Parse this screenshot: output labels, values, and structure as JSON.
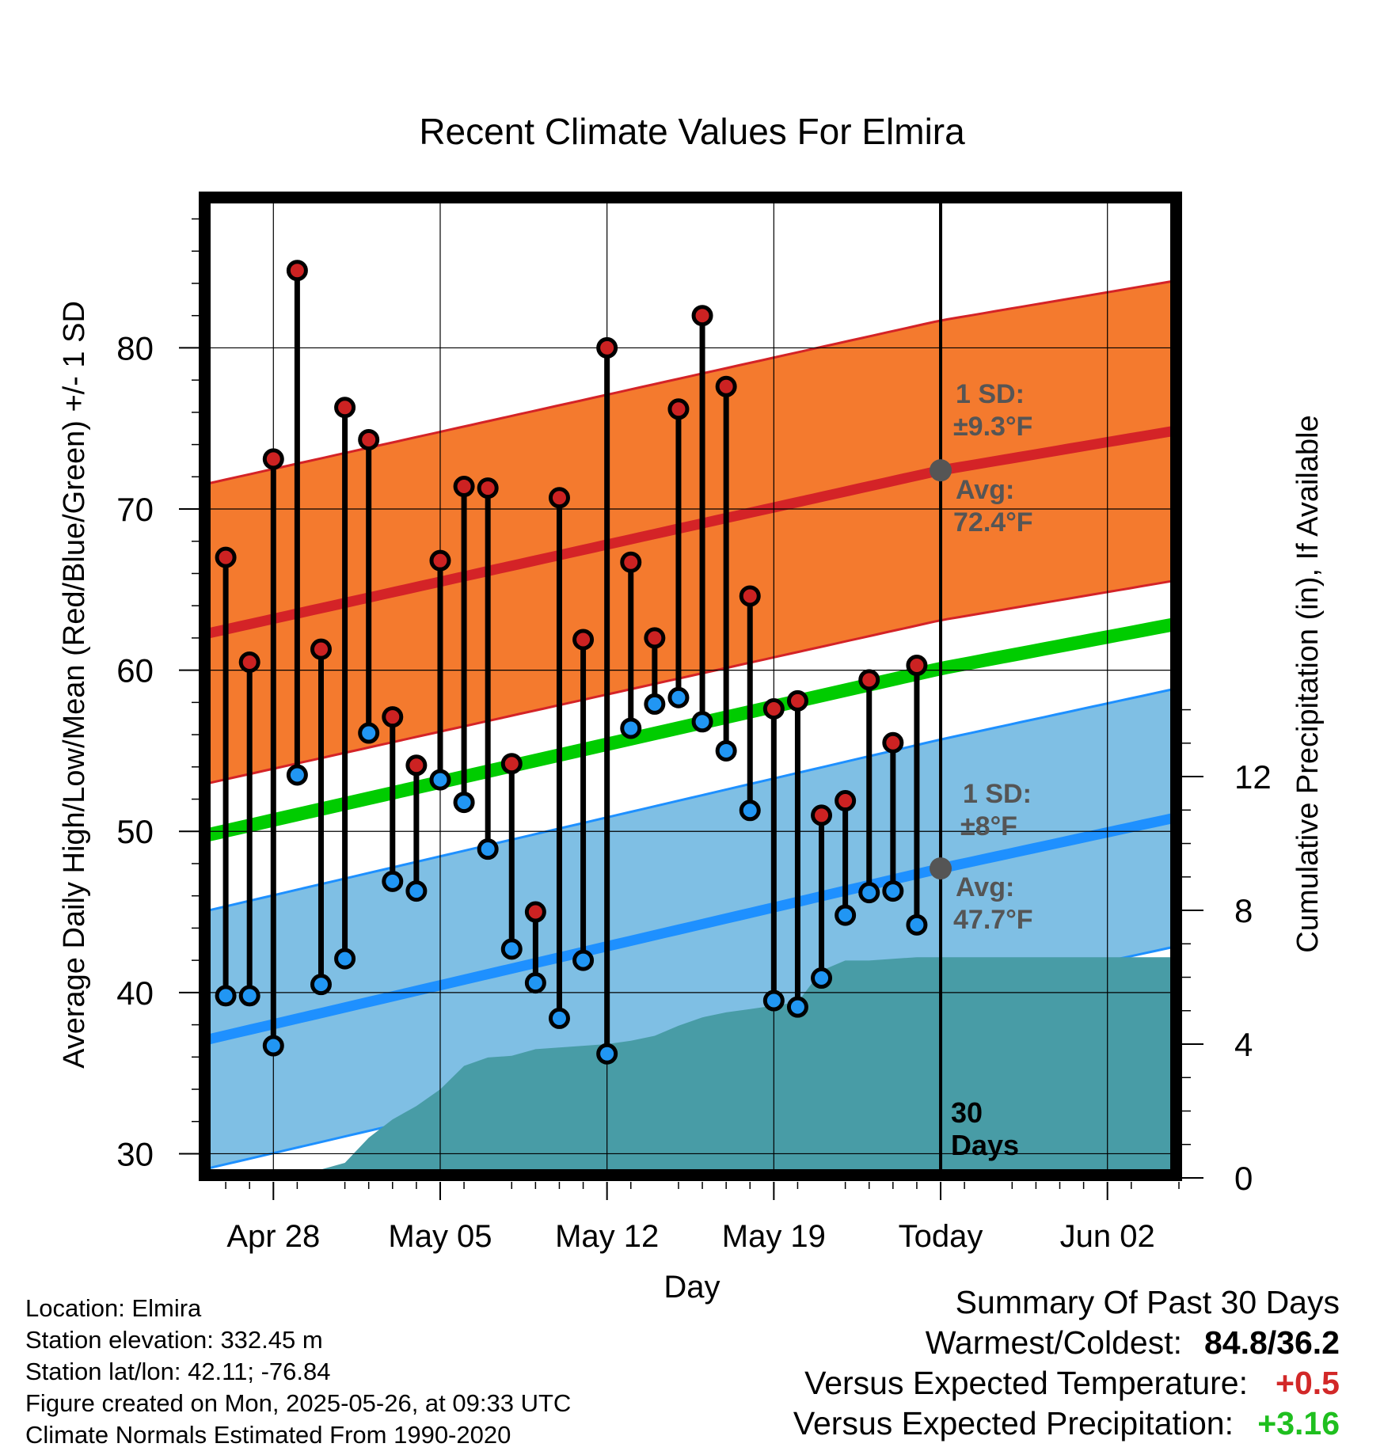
{
  "chart_data": {
    "type": "line",
    "title": "Recent Climate Values For Elmira",
    "xlabel": "Day",
    "ylabel": "Average Daily High/Low/Mean (Red/Blue/Green) +/- 1 SD",
    "y2label": "Cumulative Precipitation (in), If Available",
    "x_range": [
      "2025-04-25",
      "2025-06-05"
    ],
    "ylim": [
      28.5,
      89.5
    ],
    "y2lim": [
      0,
      29.4
    ],
    "y_ticks": [
      30,
      40,
      50,
      60,
      70,
      80
    ],
    "y2_ticks": [
      0,
      4,
      8,
      12
    ],
    "x_ticks": [
      {
        "date": "2025-04-28",
        "label": "Apr 28"
      },
      {
        "date": "2025-05-05",
        "label": "May 05"
      },
      {
        "date": "2025-05-12",
        "label": "May 12"
      },
      {
        "date": "2025-05-19",
        "label": "May 19"
      },
      {
        "date": "2025-05-26",
        "label": "Today"
      },
      {
        "date": "2025-06-02",
        "label": "Jun 02"
      }
    ],
    "grid": true,
    "today": "2025-05-26",
    "today_label": "30 Days",
    "normals": {
      "dates": [
        "2025-04-25",
        "2025-05-26",
        "2025-06-05"
      ],
      "high_avg": [
        62.2,
        72.4,
        74.9
      ],
      "high_sd": 9.3,
      "low_avg": [
        37.0,
        47.7,
        50.9
      ],
      "low_sd": 8,
      "mean_avg": [
        49.7,
        60.1,
        62.9
      ],
      "high_label_sd": "1 SD:",
      "high_label_sd_value": "±9.3°F",
      "high_label_avg": "Avg:",
      "high_label_avg_value": "72.4°F",
      "low_label_sd": "1 SD:",
      "low_label_sd_value": "±8°F",
      "low_label_avg": "Avg:",
      "low_label_avg_value": "47.7°F"
    },
    "observed": {
      "dates": [
        "2025-04-26",
        "2025-04-27",
        "2025-04-28",
        "2025-04-29",
        "2025-04-30",
        "2025-05-01",
        "2025-05-02",
        "2025-05-03",
        "2025-05-04",
        "2025-05-05",
        "2025-05-06",
        "2025-05-07",
        "2025-05-08",
        "2025-05-09",
        "2025-05-10",
        "2025-05-11",
        "2025-05-12",
        "2025-05-13",
        "2025-05-14",
        "2025-05-15",
        "2025-05-16",
        "2025-05-17",
        "2025-05-18",
        "2025-05-19",
        "2025-05-20",
        "2025-05-21",
        "2025-05-22",
        "2025-05-23",
        "2025-05-24",
        "2025-05-25"
      ],
      "high": [
        67.0,
        60.5,
        73.1,
        84.8,
        61.3,
        76.3,
        74.3,
        57.1,
        54.1,
        66.8,
        71.4,
        71.3,
        54.2,
        45.0,
        70.7,
        61.9,
        80.0,
        66.7,
        62.0,
        76.2,
        82.0,
        77.6,
        64.6,
        57.6,
        58.1,
        51.0,
        51.9,
        59.4,
        55.5,
        60.3
      ],
      "low": [
        39.8,
        39.8,
        36.7,
        53.5,
        40.5,
        42.1,
        56.1,
        46.9,
        46.3,
        53.2,
        51.8,
        48.9,
        42.7,
        40.6,
        38.4,
        42.0,
        36.2,
        56.4,
        57.9,
        58.3,
        56.8,
        55.0,
        51.3,
        39.5,
        39.1,
        40.9,
        44.8,
        46.2,
        46.3,
        44.2
      ]
    },
    "precip": {
      "dates": [
        "2025-04-25",
        "2025-04-26",
        "2025-04-27",
        "2025-04-28",
        "2025-04-29",
        "2025-04-30",
        "2025-05-01",
        "2025-05-02",
        "2025-05-03",
        "2025-05-04",
        "2025-05-05",
        "2025-05-06",
        "2025-05-07",
        "2025-05-08",
        "2025-05-09",
        "2025-05-10",
        "2025-05-11",
        "2025-05-12",
        "2025-05-13",
        "2025-05-14",
        "2025-05-15",
        "2025-05-16",
        "2025-05-17",
        "2025-05-18",
        "2025-05-19",
        "2025-05-20",
        "2025-05-21",
        "2025-05-22",
        "2025-05-23",
        "2025-05-24",
        "2025-05-25",
        "2025-05-26",
        "2025-06-05"
      ],
      "values": [
        0.0,
        0.0,
        0.0,
        0.0,
        0.25,
        0.25,
        0.45,
        1.2,
        1.75,
        2.15,
        2.65,
        3.35,
        3.6,
        3.65,
        3.85,
        3.9,
        3.95,
        4.0,
        4.1,
        4.25,
        4.55,
        4.8,
        4.95,
        5.05,
        5.15,
        5.25,
        6.2,
        6.5,
        6.5,
        6.55,
        6.6,
        6.6,
        6.6
      ]
    },
    "colors": {
      "high_band": "#f47a2e",
      "high_line": "#d42327",
      "low_band": "#7fbfe4",
      "low_line": "#1e90ff",
      "mean_line": "#00cc00",
      "precip_fill": "#489ca6",
      "high_marker": "#cc2222",
      "low_marker": "#2196f3",
      "label_gray": "#555555"
    }
  },
  "footer": {
    "location": "Location: Elmira",
    "elevation": "Station elevation: 332.45 m",
    "latlon": "Station lat/lon: 42.11; -76.84",
    "created": "Figure created on Mon, 2025-05-26, at 09:33 UTC",
    "normals": "Climate Normals Estimated From 1990-2020"
  },
  "summary": {
    "title": "Summary Of Past 30 Days",
    "warm_cold_label": "Warmest/Coldest:",
    "warm_cold_value": "84.8/36.2",
    "temp_label": "Versus Expected Temperature:",
    "temp_value": "+0.5",
    "precip_label": "Versus Expected Precipitation:",
    "precip_value": "+3.16"
  }
}
